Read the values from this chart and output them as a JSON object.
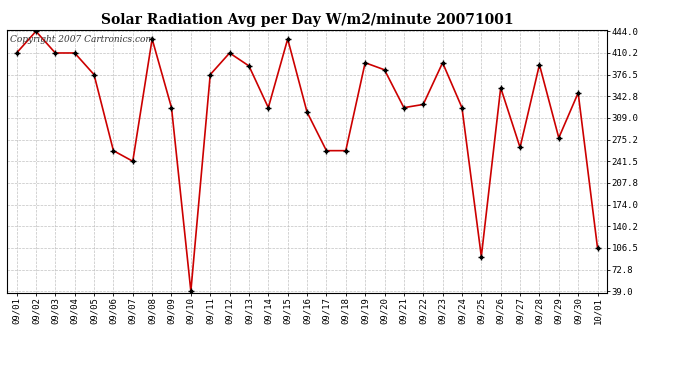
{
  "title": "Solar Radiation Avg per Day W/m2/minute 20071001",
  "copyright_text": "Copyright 2007 Cartronics.com",
  "dates": [
    "09/01",
    "09/02",
    "09/03",
    "09/04",
    "09/05",
    "09/06",
    "09/07",
    "09/08",
    "09/09",
    "09/10",
    "09/11",
    "09/12",
    "09/13",
    "09/14",
    "09/15",
    "09/16",
    "09/17",
    "09/18",
    "09/19",
    "09/20",
    "09/21",
    "09/22",
    "09/23",
    "09/24",
    "09/25",
    "09/26",
    "09/27",
    "09/28",
    "09/29",
    "09/30",
    "10/01"
  ],
  "values": [
    410.2,
    444.0,
    410.2,
    410.2,
    376.5,
    258.0,
    241.5,
    432.0,
    325.0,
    39.0,
    376.5,
    410.2,
    390.0,
    325.0,
    432.0,
    318.0,
    258.0,
    258.0,
    395.0,
    384.0,
    325.0,
    330.0,
    395.0,
    325.0,
    93.0,
    356.0,
    263.0,
    392.0,
    278.0,
    348.0,
    106.5
  ],
  "yticks": [
    39.0,
    72.8,
    106.5,
    140.2,
    174.0,
    207.8,
    241.5,
    275.2,
    309.0,
    342.8,
    376.5,
    410.2,
    444.0
  ],
  "line_color": "#cc0000",
  "marker_color": "#000000",
  "background_color": "#ffffff",
  "grid_color": "#bbbbbb",
  "title_fontsize": 10,
  "copyright_fontsize": 6.5,
  "tick_fontsize": 6.5
}
